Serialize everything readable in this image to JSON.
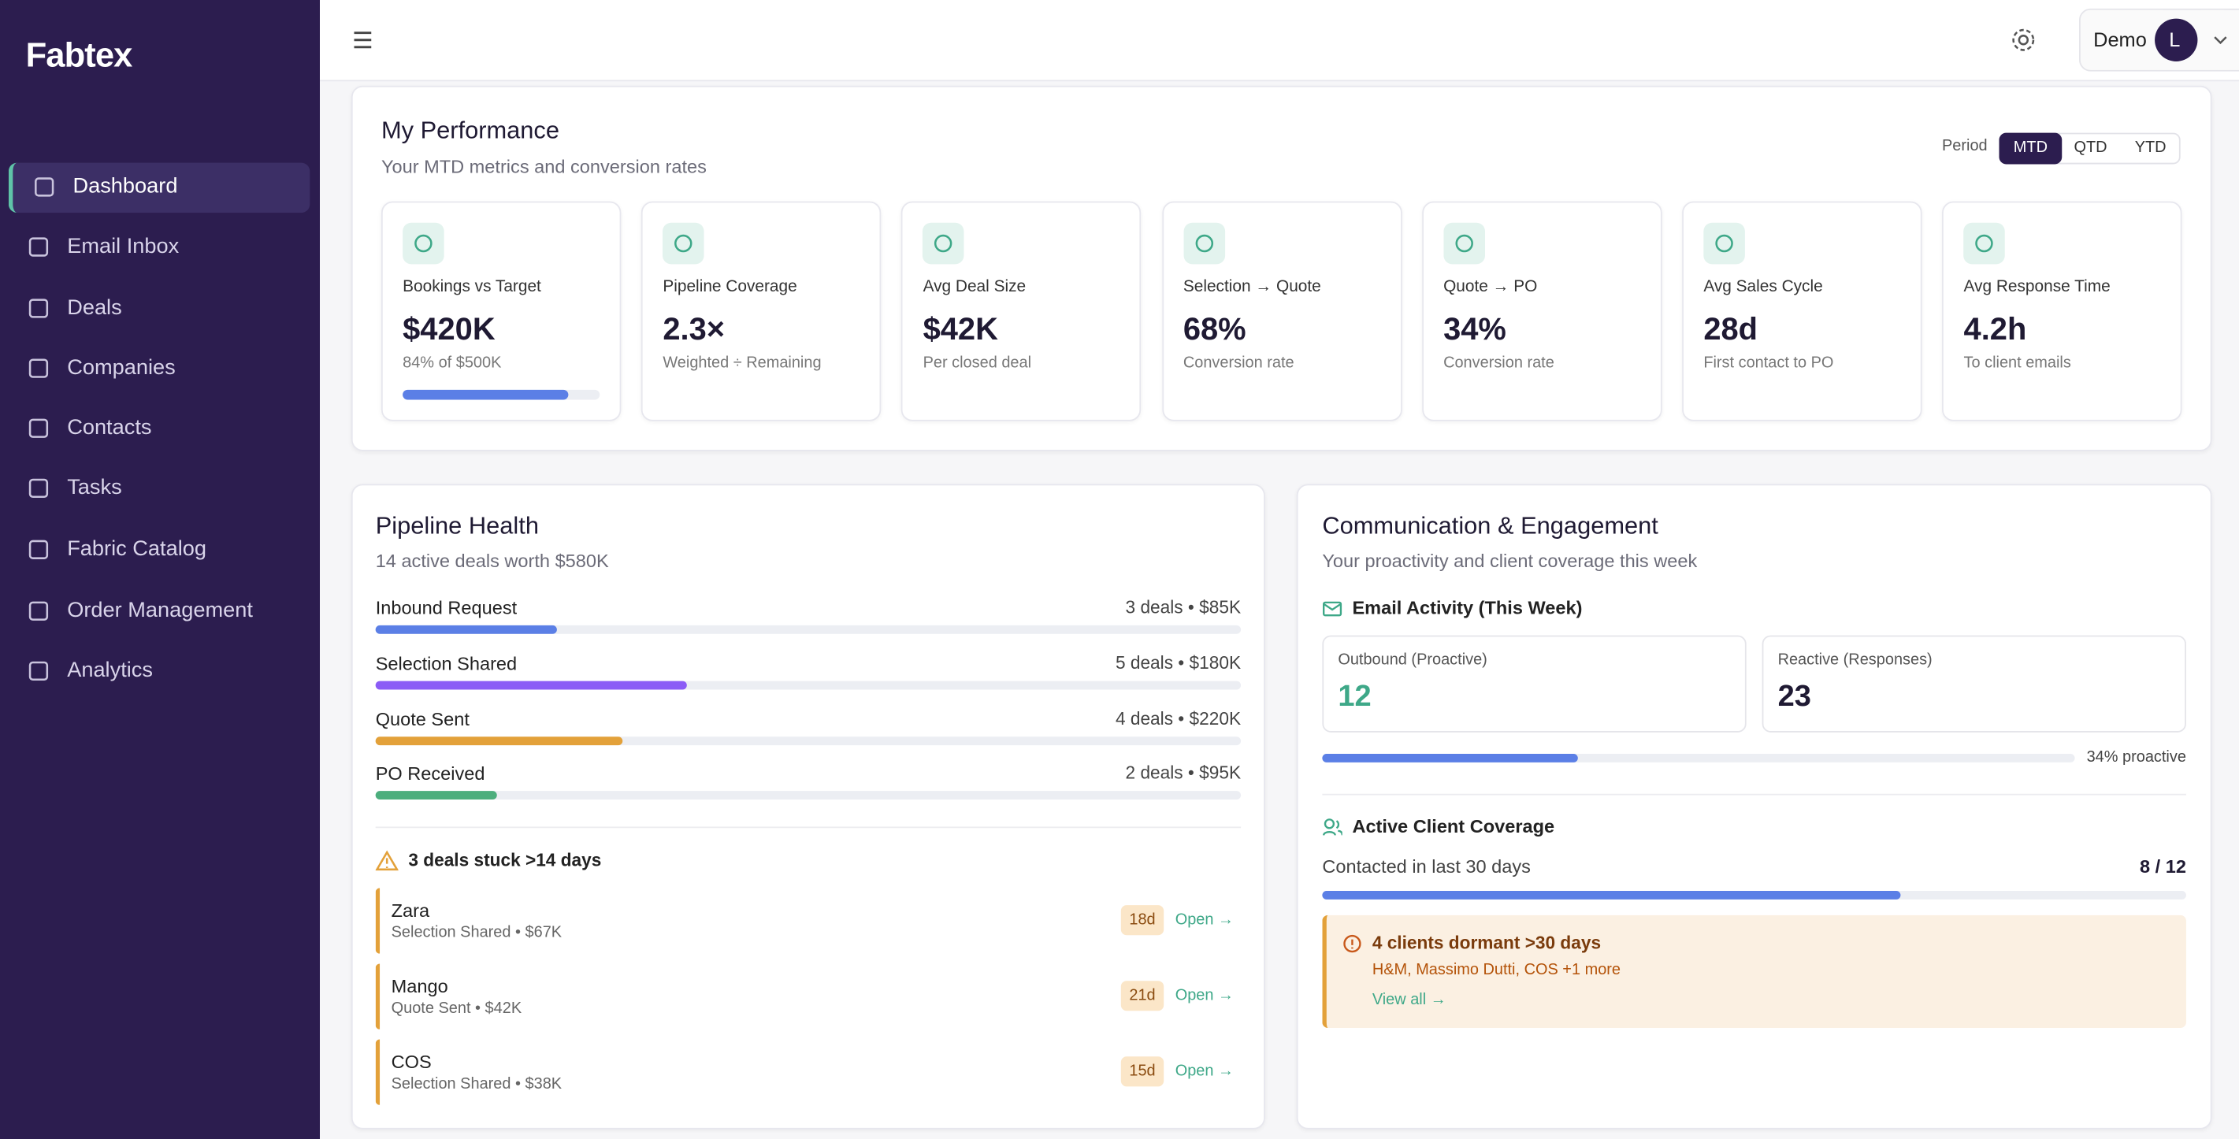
{
  "sidebar": {
    "logo": "Fabtex",
    "nav": [
      "Dashboard",
      "Email Inbox",
      "Deals",
      "Companies",
      "Contacts",
      "Tasks",
      "Fabric Catalog",
      "Order Management",
      "Analytics"
    ]
  },
  "topbar": {
    "user": "Demo",
    "avatar": "L"
  },
  "performance": {
    "title": "My Performance",
    "subtitle": "Your MTD metrics and conversion rates",
    "period_label": "Period",
    "periods": [
      "MTD",
      "QTD",
      "YTD"
    ],
    "metrics": [
      {
        "label": "Bookings vs Target",
        "value": "$420K",
        "sub": "84% of $500K"
      },
      {
        "label": "Pipeline Coverage",
        "value": "2.3×",
        "sub": "Weighted ÷ Remaining"
      },
      {
        "label": "Avg Deal Size",
        "value": "$42K",
        "sub": "Per closed deal"
      },
      {
        "label": "Selection → Quote",
        "value": "68%",
        "sub": "Conversion rate"
      },
      {
        "label": "Quote → PO",
        "value": "34%",
        "sub": "Conversion rate"
      },
      {
        "label": "Avg Sales Cycle",
        "value": "28d",
        "sub": "First contact to PO"
      },
      {
        "label": "Avg Response Time",
        "value": "4.2h",
        "sub": "To client emails"
      }
    ],
    "bookings_progress": 84
  },
  "pipeline": {
    "title": "Pipeline Health",
    "subtitle": "14 active deals worth $580K",
    "stages": [
      {
        "name": "Inbound Request",
        "summary": "3 deals • $85K",
        "progress": 21,
        "color": "#5b7fe6"
      },
      {
        "name": "Selection Shared",
        "summary": "5 deals • $180K",
        "progress": 36,
        "color": "#8b5cf6"
      },
      {
        "name": "Quote Sent",
        "summary": "4 deals • $220K",
        "progress": 28.5,
        "color": "#e3a13a"
      },
      {
        "name": "PO Received",
        "summary": "2 deals • $95K",
        "progress": 14,
        "color": "#4cae7d"
      }
    ],
    "stuck_title": "3 deals stuck >14 days",
    "stuck": [
      {
        "name": "Zara",
        "detail": "Selection Shared • $67K",
        "age": "18d",
        "action": "Open →"
      },
      {
        "name": "Mango",
        "detail": "Quote Sent • $42K",
        "age": "21d",
        "action": "Open →"
      },
      {
        "name": "COS",
        "detail": "Selection Shared • $38K",
        "age": "15d",
        "action": "Open →"
      }
    ]
  },
  "engagement": {
    "title": "Communication & Engagement",
    "subtitle": "Your proactivity and client coverage this week",
    "email_title": "Email Activity (This Week)",
    "outbound_label": "Outbound (Proactive)",
    "outbound": 12,
    "reactive_label": "Reactive (Responses)",
    "reactive": 23,
    "proactive_label": "34% proactive",
    "proactive_progress": 34,
    "coverage_title": "Active Client Coverage",
    "coverage_label": "Contacted in last 30 days",
    "coverage_value": "8 / 12",
    "coverage_progress": 67,
    "alert_title": "4 clients dormant >30 days",
    "alert_detail": "H&M, Massimo Dutti, COS +1 more",
    "alert_action": "View all →"
  }
}
